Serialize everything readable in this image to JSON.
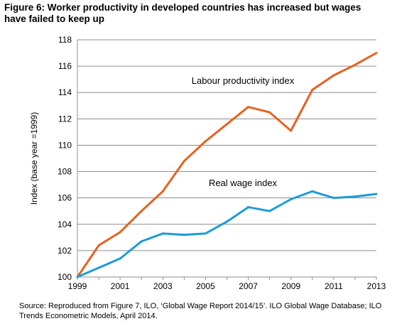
{
  "figure": {
    "title_line1": "Figure 6: Worker productivity in developed countries has increased but wages",
    "title_line2": "have failed to keep up",
    "source_line1": "Source: Reproduced from Figure 7, ILO, ‘Global Wage Report 2014/15’. ILO Global Wage Database; ILO",
    "source_line2": "Trends Econometric Models, April 2014."
  },
  "chart_data": {
    "type": "line",
    "title": "",
    "xlabel": "",
    "ylabel": "Index (base year =1999)",
    "x": [
      1999,
      2000,
      2001,
      2002,
      2003,
      2004,
      2005,
      2006,
      2007,
      2008,
      2009,
      2010,
      2011,
      2012,
      2013
    ],
    "xticks": [
      "1999",
      "2001",
      "2003",
      "2005",
      "2007",
      "2009",
      "2011",
      "2013"
    ],
    "xlim": [
      1999,
      2013
    ],
    "ylim": [
      100,
      118
    ],
    "yticks": [
      "100",
      "102",
      "104",
      "106",
      "108",
      "110",
      "112",
      "114",
      "116",
      "118"
    ],
    "grid": "horizontal",
    "legend": "none",
    "series": [
      {
        "name": "Labour productivity index",
        "color": "#E8611E",
        "values": [
          100.0,
          102.4,
          103.4,
          105.0,
          106.5,
          108.8,
          110.3,
          111.6,
          112.9,
          112.5,
          111.1,
          114.2,
          115.3,
          116.1,
          117.0
        ]
      },
      {
        "name": "Real wage index",
        "color": "#1C9BD8",
        "values": [
          100.0,
          100.7,
          101.4,
          102.7,
          103.3,
          103.2,
          103.3,
          104.2,
          105.3,
          105.0,
          105.9,
          106.5,
          106.0,
          106.1,
          106.3
        ]
      }
    ]
  }
}
